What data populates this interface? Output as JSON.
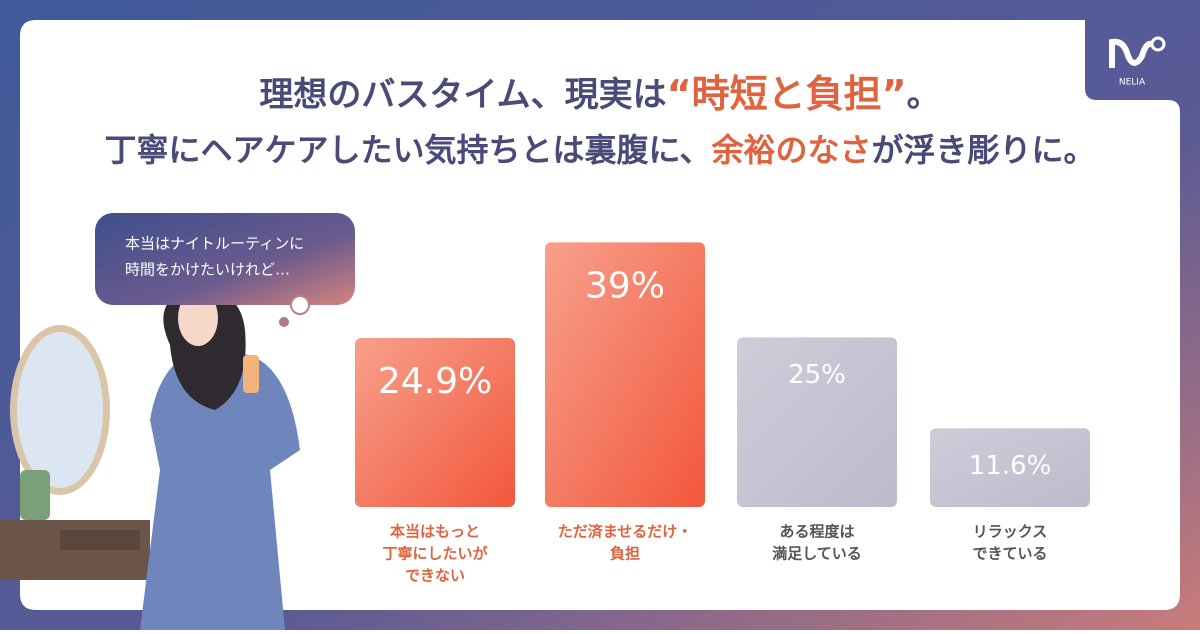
{
  "chart_data": {
    "type": "bar",
    "title": [
      "理想のバスタイム、現実は",
      "“時短と負担”",
      "。"
    ],
    "subtitle": [
      "丁寧にヘアケアしたい気持ちとは裏腹に、",
      "余裕のなさ",
      "が浮き彫りに。"
    ],
    "bubble": [
      "本当はナイトルーティンに",
      "時間をかけたいけれど…"
    ],
    "logo": "NELIA",
    "categories": [
      [
        "本当はもっと",
        "丁寧にしたいが",
        "できない"
      ],
      [
        "ただ済ませるだけ・",
        "負担"
      ],
      [
        "ある程度は",
        "満足している"
      ],
      [
        "リラックス",
        "できている"
      ]
    ],
    "values": [
      24.9,
      39,
      25,
      11.6
    ],
    "value_labels": [
      "24.9%",
      "39%",
      "25%",
      "11.6%"
    ],
    "highlight": [
      true,
      true,
      false,
      false
    ],
    "ylim": [
      0,
      42
    ]
  }
}
